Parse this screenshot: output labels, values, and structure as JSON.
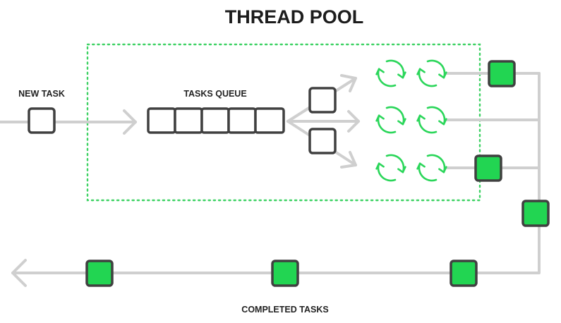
{
  "title": "THREAD POOL",
  "labels": {
    "new_task": "NEW TASK",
    "tasks_queue": "TASKS QUEUE",
    "completed_tasks": "COMPLETED TASKS"
  },
  "colors": {
    "task_box_fill": "#22d552",
    "task_box_border": "#404040",
    "thread_icon": "#2bd65a",
    "pool_boundary": "#3ed264",
    "flow_line": "#cfcfcf",
    "title_text": "#1c1c1c"
  },
  "queue": {
    "slot_count": 5
  },
  "thread_pool": {
    "threads": [
      {
        "id": "thread-1",
        "state": "completing-task"
      },
      {
        "id": "thread-2",
        "state": "working"
      },
      {
        "id": "thread-3",
        "state": "working"
      },
      {
        "id": "thread-4",
        "state": "idle"
      },
      {
        "id": "thread-5",
        "state": "working"
      },
      {
        "id": "thread-6",
        "state": "completing-task"
      }
    ]
  },
  "completed_tasks_on_line": 5,
  "icons": {
    "thread": "refresh-cycle-icon",
    "task": "task-square-icon",
    "arrow": "arrow-head-icon"
  }
}
